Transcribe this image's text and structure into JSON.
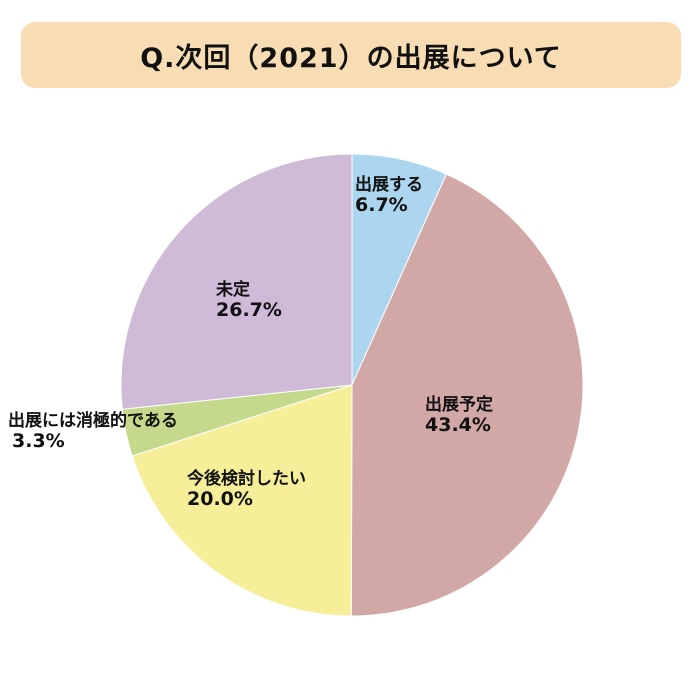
{
  "title": "Q.次回（2021）の出展について",
  "chart_data": {
    "type": "pie",
    "title": "Q.次回（2021）の出展について",
    "slices": [
      {
        "label": "出展する",
        "value": 6.7,
        "value_text": "6.7%",
        "color": "#acd6ef"
      },
      {
        "label": "出展予定",
        "value": 43.4,
        "value_text": "43.4%",
        "color": "#d2a8a6"
      },
      {
        "label": "今後検討したい",
        "value": 20.0,
        "value_text": "20.0%",
        "color": "#f6ee98"
      },
      {
        "label": "出展には消極的である",
        "value": 3.3,
        "value_text": "3.3%",
        "color": "#c4d98c"
      },
      {
        "label": "未定",
        "value": 26.7,
        "value_text": "26.7%",
        "color": "#cfbad8"
      }
    ],
    "start_angle": "12 o'clock",
    "direction": "clockwise",
    "legend": "none (labels on chart)"
  }
}
